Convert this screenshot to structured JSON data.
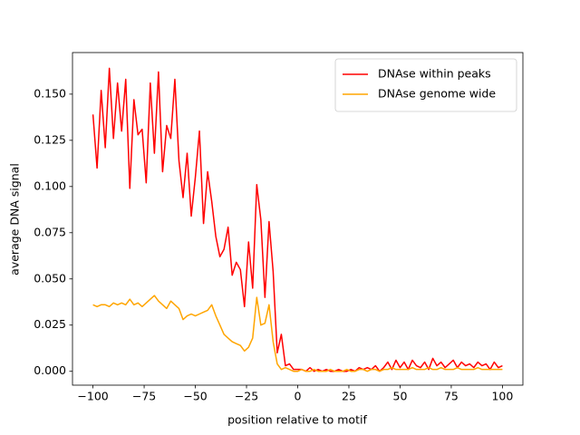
{
  "chart_data": {
    "type": "line",
    "xlabel": "position relative to motif",
    "ylabel": "average DNA signal",
    "x": [
      -100,
      -98,
      -96,
      -94,
      -92,
      -90,
      -88,
      -86,
      -84,
      -82,
      -80,
      -78,
      -76,
      -74,
      -72,
      -70,
      -68,
      -66,
      -64,
      -62,
      -60,
      -58,
      -56,
      -54,
      -52,
      -50,
      -48,
      -46,
      -44,
      -42,
      -40,
      -38,
      -36,
      -34,
      -32,
      -30,
      -28,
      -26,
      -24,
      -22,
      -20,
      -18,
      -16,
      -14,
      -12,
      -10,
      -8,
      -6,
      -4,
      -2,
      0,
      2,
      4,
      6,
      8,
      10,
      12,
      14,
      16,
      18,
      20,
      22,
      24,
      26,
      28,
      30,
      32,
      34,
      36,
      38,
      40,
      42,
      44,
      46,
      48,
      50,
      52,
      54,
      56,
      58,
      60,
      62,
      64,
      66,
      68,
      70,
      72,
      74,
      76,
      78,
      80,
      82,
      84,
      86,
      88,
      90,
      92,
      94,
      96,
      98,
      100
    ],
    "series": [
      {
        "name": "DNAse within peaks",
        "color": "#ff0000",
        "values": [
          0.139,
          0.11,
          0.152,
          0.121,
          0.164,
          0.126,
          0.156,
          0.13,
          0.158,
          0.099,
          0.147,
          0.128,
          0.131,
          0.102,
          0.156,
          0.118,
          0.162,
          0.108,
          0.133,
          0.126,
          0.158,
          0.114,
          0.094,
          0.118,
          0.084,
          0.105,
          0.13,
          0.08,
          0.108,
          0.092,
          0.073,
          0.062,
          0.066,
          0.078,
          0.052,
          0.059,
          0.055,
          0.035,
          0.07,
          0.045,
          0.101,
          0.082,
          0.04,
          0.081,
          0.054,
          0.01,
          0.02,
          0.003,
          0.004,
          0.001,
          0.001,
          0.001,
          0.0,
          0.002,
          0.0,
          0.001,
          0.0,
          0.001,
          0.0,
          0.0,
          0.001,
          0.0,
          0.0,
          0.001,
          0.0,
          0.002,
          0.001,
          0.002,
          0.001,
          0.003,
          0.0,
          0.002,
          0.005,
          0.001,
          0.006,
          0.002,
          0.005,
          0.001,
          0.006,
          0.003,
          0.002,
          0.005,
          0.001,
          0.007,
          0.003,
          0.005,
          0.002,
          0.004,
          0.006,
          0.002,
          0.005,
          0.003,
          0.004,
          0.002,
          0.005,
          0.003,
          0.004,
          0.001,
          0.005,
          0.002,
          0.003
        ]
      },
      {
        "name": "DNAse genome wide",
        "color": "#ffa500",
        "values": [
          0.036,
          0.035,
          0.036,
          0.036,
          0.035,
          0.037,
          0.036,
          0.037,
          0.036,
          0.039,
          0.036,
          0.037,
          0.035,
          0.037,
          0.039,
          0.041,
          0.038,
          0.036,
          0.034,
          0.038,
          0.036,
          0.034,
          0.028,
          0.03,
          0.031,
          0.03,
          0.031,
          0.032,
          0.033,
          0.036,
          0.03,
          0.025,
          0.02,
          0.018,
          0.016,
          0.015,
          0.014,
          0.011,
          0.013,
          0.018,
          0.04,
          0.025,
          0.026,
          0.036,
          0.016,
          0.004,
          0.001,
          0.002,
          0.001,
          0.0,
          0.0,
          0.001,
          0.0,
          0.0,
          0.001,
          0.0,
          0.0,
          0.0,
          0.001,
          0.0,
          0.0,
          0.0,
          0.001,
          0.0,
          0.0,
          0.001,
          0.001,
          0.0,
          0.001,
          0.001,
          0.0,
          0.001,
          0.001,
          0.002,
          0.001,
          0.001,
          0.001,
          0.001,
          0.002,
          0.001,
          0.001,
          0.001,
          0.002,
          0.001,
          0.001,
          0.002,
          0.001,
          0.001,
          0.001,
          0.002,
          0.001,
          0.001,
          0.001,
          0.001,
          0.002,
          0.001,
          0.001,
          0.001,
          0.001,
          0.001,
          0.001
        ]
      }
    ],
    "xlim": [
      -110,
      110
    ],
    "xticks": [
      {
        "value": -100,
        "label": "−100"
      },
      {
        "value": -75,
        "label": "−75"
      },
      {
        "value": -50,
        "label": "−50"
      },
      {
        "value": -25,
        "label": "−25"
      },
      0,
      25,
      50,
      75,
      100
    ],
    "ylim": [
      -0.0075,
      0.1725
    ],
    "yticks": [
      {
        "value": 0,
        "label": "0.000"
      },
      {
        "value": 0.025,
        "label": "0.025"
      },
      {
        "value": 0.05,
        "label": "0.050"
      },
      {
        "value": 0.075,
        "label": "0.075"
      },
      {
        "value": 0.1,
        "label": "0.100"
      },
      {
        "value": 0.125,
        "label": "0.125"
      },
      {
        "value": 0.15,
        "label": "0.150"
      }
    ],
    "legend": "upper right"
  }
}
